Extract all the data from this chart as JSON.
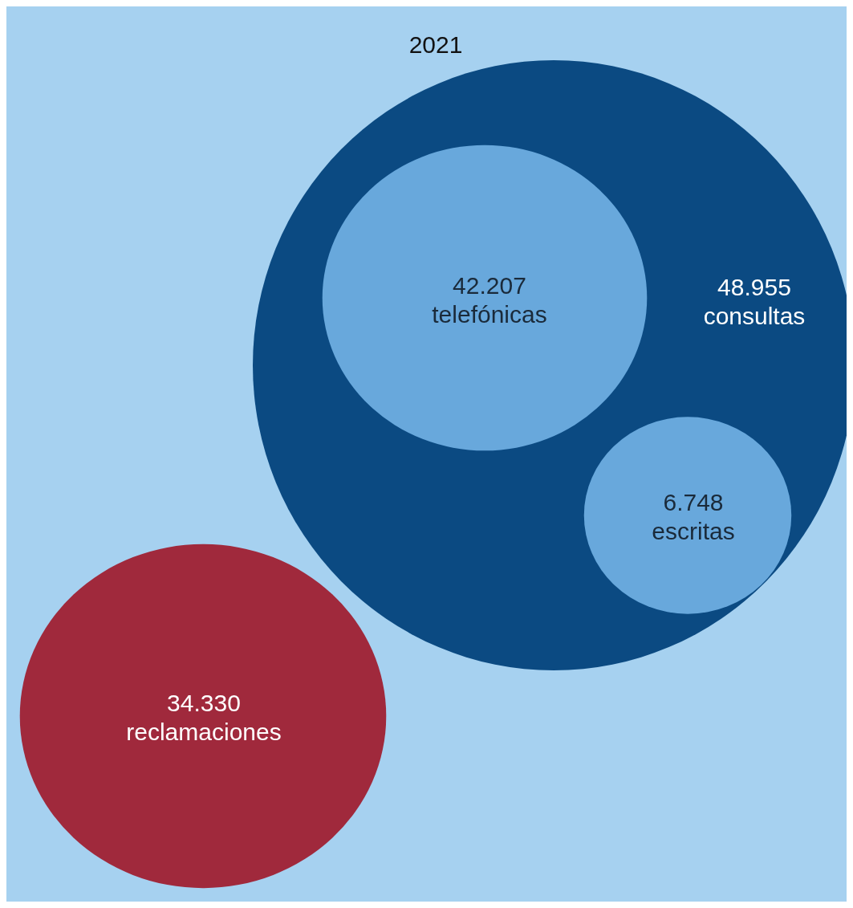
{
  "chart_data": {
    "type": "other",
    "title": "2021",
    "categories": [
      "consultas",
      "telefónicas",
      "escritas",
      "reclamaciones"
    ],
    "values": [
      48955,
      42207,
      6748,
      34330
    ],
    "value_labels": [
      "48.955",
      "42.207",
      "6.748",
      "34.330"
    ],
    "colors": [
      "#0b4a82",
      "#68a8dc",
      "#68a8dc",
      "#a0293c"
    ]
  }
}
